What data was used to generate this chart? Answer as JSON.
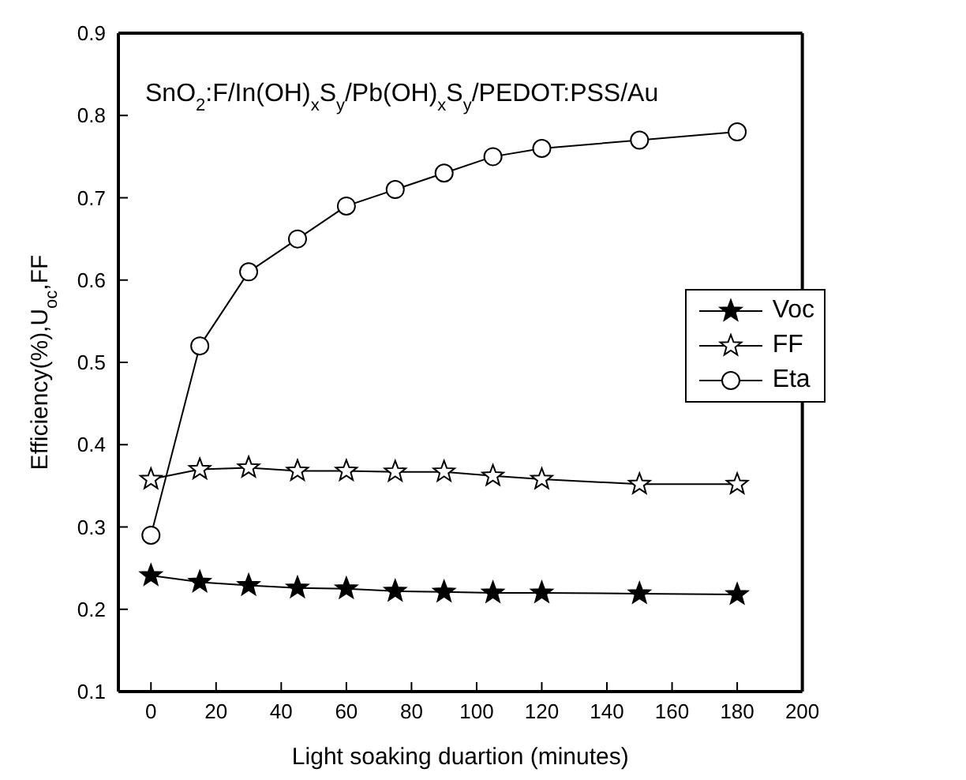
{
  "chart_data": {
    "type": "line",
    "title": "SnO$_{2}$:F/In(OH)$_{x}$S$_{y}$/Pb(OH)$_{x}$S$_{y}$/PEDOT:PSS/Au",
    "xlabel": "Light soaking duartion (minutes)",
    "ylabel": "Efficiency(%),U$_{oc}$,FF",
    "x": [
      0,
      15,
      30,
      45,
      60,
      75,
      90,
      105,
      120,
      150,
      180
    ],
    "series": [
      {
        "name": "Voc",
        "color": "#000000",
        "marker": "star",
        "values": [
          0.241,
          0.233,
          0.229,
          0.226,
          0.225,
          0.222,
          0.221,
          0.22,
          0.22,
          0.219,
          0.218
        ]
      },
      {
        "name": "FF",
        "color": "#000000",
        "marker": "star",
        "values": [
          0.358,
          0.37,
          0.372,
          0.368,
          0.368,
          0.367,
          0.367,
          0.362,
          0.358,
          0.352,
          0.352
        ]
      },
      {
        "name": "Eta",
        "color": "#000000",
        "marker": "circle",
        "values": [
          0.29,
          0.52,
          0.61,
          0.65,
          0.69,
          0.71,
          0.73,
          0.75,
          0.76,
          0.77,
          0.78
        ]
      }
    ],
    "xlim": [
      -10,
      200
    ],
    "xticks": [
      0,
      20,
      40,
      60,
      80,
      100,
      120,
      140,
      160,
      180,
      200
    ],
    "ylim": [
      0.1,
      0.9
    ],
    "yticks": [
      0.1,
      0.2,
      0.3,
      0.4,
      0.5,
      0.6,
      0.7,
      0.8,
      0.9
    ],
    "grid": false,
    "legend": "right",
    "line_style": "solid"
  }
}
